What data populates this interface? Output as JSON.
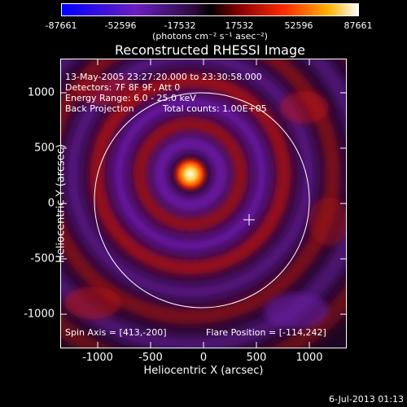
{
  "colorbar": {
    "ticks": [
      "-87661",
      "-52596",
      "-17532",
      "17532",
      "52596",
      "87661"
    ],
    "unit": "(photons cm⁻² s⁻¹ asec⁻²)"
  },
  "image": {
    "title": "Reconstructed RHESSI Image",
    "xlabel": "Heliocentric X (arcsec)",
    "ylabel": "Heliocentric Y (arcsec)",
    "x_ticks": [
      "-1000",
      "-500",
      "0",
      "500",
      "1000"
    ],
    "y_ticks": [
      "1000",
      "500",
      "0",
      "-500",
      "-1000"
    ],
    "annotations": {
      "time_range": "13-May-2005 23:27:20.000 to 23:30:58.000",
      "detectors": "Detectors: 7F 8F 9F, Att 0",
      "energy": "Energy Range: 6.0 - 25.0 keV",
      "method": "Back Projection",
      "counts": "Total counts: 1.00E+05",
      "spin_axis": "Spin Axis = [413,-200]",
      "flare_position": "Flare Position = [-114,242]"
    }
  },
  "datestamp": "6-Jul-2013 01:13"
}
